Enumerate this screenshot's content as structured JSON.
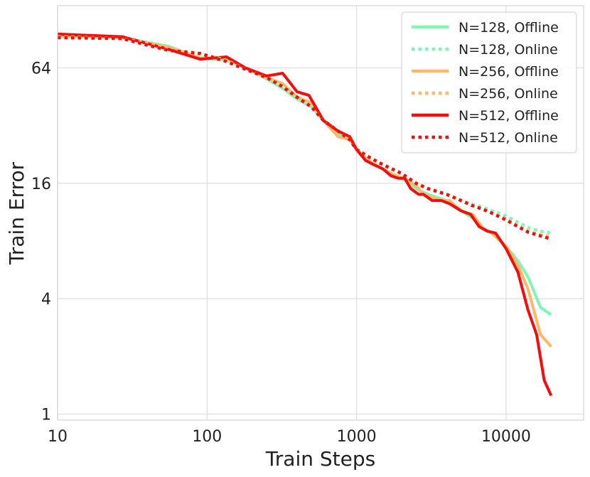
{
  "chart_data": {
    "type": "line",
    "xlabel": "Train Steps",
    "ylabel": "Train Error",
    "xscale": "log",
    "yscale": "log2",
    "xlim": [
      10,
      33000
    ],
    "ylim": [
      0.93,
      135
    ],
    "x_ticks": [
      10,
      100,
      1000,
      10000
    ],
    "x_tick_labels": [
      "10",
      "100",
      "1000",
      "10000"
    ],
    "y_ticks": [
      1,
      4,
      16,
      64
    ],
    "y_tick_labels": [
      "1",
      "4",
      "16",
      "64"
    ],
    "grid": true,
    "legend_position": "top-right",
    "series": [
      {
        "name": "N=128, Offline",
        "color": "#7ef7b6",
        "style": "solid",
        "x": [
          10,
          27,
          55,
          90,
          135,
          180,
          250,
          320,
          400,
          500,
          600,
          750,
          900,
          1000,
          1200,
          1500,
          2000,
          2500,
          3000,
          4000,
          5000,
          6000,
          7000,
          8000,
          10000,
          12000,
          14000,
          17000,
          20000
        ],
        "y": [
          94,
          92,
          83,
          72,
          70,
          64,
          56,
          50,
          44,
          40,
          34,
          29,
          27,
          24,
          21,
          19,
          17,
          15,
          14,
          13,
          11.5,
          10.5,
          9.4,
          8.8,
          7.5,
          6.3,
          5.2,
          3.6,
          3.3
        ]
      },
      {
        "name": "N=128, Online",
        "color": "#7ef7b6",
        "style": "dotted",
        "x": [
          10,
          27,
          40,
          55,
          90,
          135,
          180,
          250,
          320,
          400,
          500,
          600,
          750,
          900,
          1000,
          1200,
          1500,
          2000,
          2500,
          3000,
          4000,
          5000,
          6000,
          7000,
          8000,
          10000,
          12000,
          14000,
          17000,
          20000
        ],
        "y": [
          93,
          91,
          86,
          80,
          76,
          70,
          63,
          57,
          51,
          45,
          40,
          34,
          30,
          27,
          24,
          22,
          20,
          18,
          16,
          15,
          14,
          13,
          12.4,
          12,
          11.5,
          10.8,
          10,
          9.4,
          9,
          8.8
        ]
      },
      {
        "name": "N=256, Offline",
        "color": "#ffb768",
        "style": "solid",
        "x": [
          10,
          27,
          55,
          90,
          135,
          180,
          250,
          320,
          400,
          500,
          600,
          750,
          900,
          1000,
          1200,
          1500,
          1800,
          2100,
          2500,
          2800,
          3200,
          3700,
          4200,
          5000,
          6000,
          7000,
          8000,
          10000,
          12000,
          14000,
          17000,
          20000
        ],
        "y": [
          94,
          92,
          82,
          72,
          72,
          64,
          57,
          53,
          45,
          42,
          34,
          28,
          27,
          24,
          21,
          19,
          17.5,
          17,
          15.5,
          14,
          13.5,
          13,
          13,
          11.5,
          11,
          9.3,
          8.8,
          7.5,
          6,
          4.5,
          2.6,
          2.25
        ]
      },
      {
        "name": "N=256, Online",
        "color": "#ffb768",
        "style": "dotted",
        "x": [
          10,
          27,
          40,
          55,
          90,
          135,
          180,
          250,
          320,
          400,
          500,
          600,
          750,
          900,
          1000,
          1200,
          1500,
          2000,
          2500,
          3000,
          4000,
          5000,
          6000,
          7000,
          8000,
          10000,
          12000,
          14000,
          17000,
          20000
        ],
        "y": [
          93,
          91,
          86,
          80,
          76,
          70,
          63,
          57,
          51,
          45,
          40,
          34,
          30,
          27,
          24,
          22,
          20,
          18,
          16,
          15,
          14,
          13,
          12.2,
          11.7,
          11.2,
          10.4,
          9.6,
          9,
          8.6,
          8.4
        ]
      },
      {
        "name": "N=512, Offline",
        "color": "#f50c0c",
        "style": "solid",
        "x": [
          10,
          27,
          55,
          90,
          135,
          180,
          250,
          320,
          400,
          480,
          600,
          750,
          900,
          1000,
          1150,
          1300,
          1500,
          1700,
          1900,
          2100,
          2300,
          2600,
          2800,
          3200,
          3700,
          4200,
          5000,
          5800,
          6600,
          7500,
          8500,
          10000,
          12000,
          14000,
          16000,
          18000,
          20000
        ],
        "y": [
          96,
          93,
          80,
          71,
          73,
          64,
          58,
          60,
          48,
          46,
          34,
          30,
          28,
          24,
          21,
          20,
          19,
          17.5,
          17,
          17,
          15,
          14,
          14,
          13,
          13,
          12.5,
          11.5,
          11,
          9.5,
          9,
          8.8,
          7.3,
          5.5,
          3.5,
          2.6,
          1.5,
          1.25
        ]
      },
      {
        "name": "N=512, Online",
        "color": "#f50c0c",
        "style": "dotted",
        "x": [
          10,
          27,
          40,
          55,
          90,
          135,
          180,
          250,
          320,
          400,
          500,
          600,
          750,
          900,
          1000,
          1200,
          1500,
          2000,
          2500,
          3000,
          4000,
          5000,
          6000,
          7000,
          8000,
          10000,
          12000,
          14000,
          17000,
          20000
        ],
        "y": [
          92,
          91,
          84,
          79,
          76,
          69,
          63,
          57,
          51,
          45,
          40,
          34,
          30,
          27,
          24,
          22,
          20,
          18,
          16,
          15,
          14,
          13,
          12.2,
          11.7,
          11.2,
          10.3,
          9.5,
          8.9,
          8.5,
          8.2
        ]
      }
    ]
  }
}
